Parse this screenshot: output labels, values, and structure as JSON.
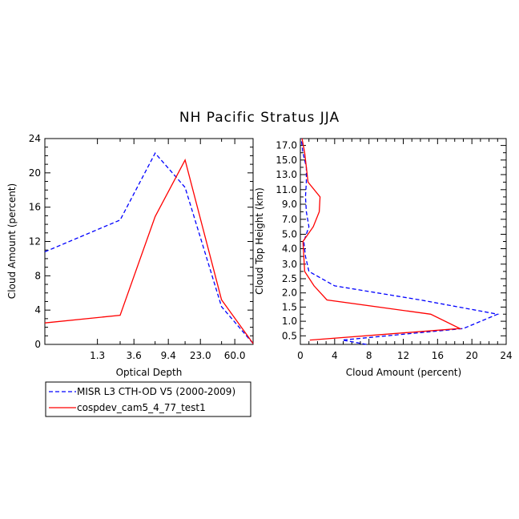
{
  "title": "NH Pacific Stratus JJA",
  "colors": {
    "series1": "#0000ff",
    "series2": "#ff0000",
    "axis": "#000000"
  },
  "legend": {
    "entries": [
      {
        "label": "MISR L3 CTH-OD V5 (2000-2009)",
        "color": "#0000ff",
        "dash": "dashed"
      },
      {
        "label": "cospdev_cam5_4_77_test1",
        "color": "#ff0000",
        "dash": "solid"
      }
    ]
  },
  "chart_data": [
    {
      "type": "line",
      "xlabel": "Optical Depth",
      "ylabel": "Cloud Amount (percent)",
      "x_tick_labels": [
        "1.3",
        "3.6",
        "9.4",
        "23.0",
        "60.0"
      ],
      "y_tick_labels": [
        "0",
        "4",
        "8",
        "12",
        "16",
        "20",
        "24"
      ],
      "ylim": [
        0,
        24
      ],
      "series": [
        {
          "name": "MISR L3 CTH-OD V5 (2000-2009)",
          "color": "#0000ff",
          "dash": "dashed",
          "x": [
            0.3,
            2.45,
            6.5,
            15.0,
            41.5,
            100.0
          ],
          "values": [
            10.8,
            14.5,
            22.3,
            18.3,
            4.4,
            0.1
          ]
        },
        {
          "name": "cospdev_cam5_4_77_test1",
          "color": "#ff0000",
          "dash": "solid",
          "x": [
            0.3,
            2.45,
            6.5,
            15.0,
            41.5,
            100.0
          ],
          "values": [
            2.5,
            3.4,
            14.9,
            21.5,
            5.2,
            0.1
          ]
        }
      ]
    },
    {
      "type": "line",
      "xlabel": "Cloud Amount (percent)",
      "ylabel": "Cloud Top Height (km)",
      "x_tick_labels": [
        "0",
        "4",
        "8",
        "12",
        "16",
        "20",
        "24"
      ],
      "xlim": [
        0,
        24
      ],
      "y_tick_labels": [
        "0.5",
        "1.0",
        "1.5",
        "2.0",
        "2.5",
        "3.0",
        "4.0",
        "5.0",
        "7.0",
        "9.0",
        "11.0",
        "13.0",
        "15.0",
        "17.0"
      ],
      "series": [
        {
          "name": "MISR L3 CTH-OD V5 (2000-2009)",
          "color": "#0000ff",
          "dash": "dashed",
          "height_km": [
            0.0,
            0.25,
            0.75,
            1.25,
            1.75,
            2.25,
            2.75,
            3.5,
            4.5,
            6.0,
            8.0,
            10.0,
            12.0,
            14.0,
            16.0,
            18.0
          ],
          "values": [
            7.7,
            4.9,
            19.0,
            23.0,
            14.0,
            4.0,
            1.0,
            0.6,
            0.4,
            1.0,
            0.7,
            0.6,
            0.7,
            0.7,
            0.3,
            0.1
          ]
        },
        {
          "name": "cospdev_cam5_4_77_test1",
          "color": "#ff0000",
          "dash": "solid",
          "height_km": [
            0.25,
            0.75,
            1.25,
            1.75,
            2.25,
            2.75,
            3.5,
            4.5,
            6.0,
            8.0,
            10.0,
            12.0,
            14.0,
            16.0,
            18.0
          ],
          "values": [
            1.1,
            18.6,
            15.2,
            3.1,
            1.6,
            0.5,
            0.4,
            0.3,
            1.5,
            2.2,
            2.3,
            0.9,
            0.7,
            0.5,
            0.2
          ]
        }
      ]
    }
  ]
}
